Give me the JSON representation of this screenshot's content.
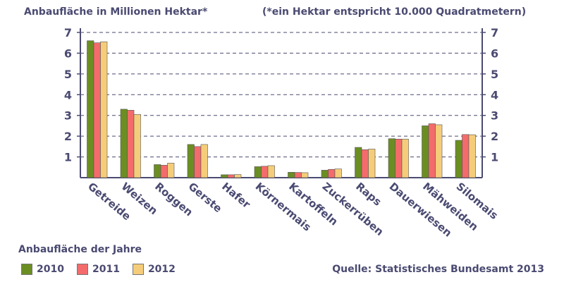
{
  "header": {
    "ylabel": "Anbaufläche in Millionen Hektar*",
    "note": "(*ein Hektar entspricht 10.000 Quadratmetern)"
  },
  "legend": {
    "title": "Anbaufläche der Jahre",
    "placement": "bottom-left"
  },
  "source": "Quelle: Statistisches Bundesamt 2013",
  "colors": {
    "2010": "#6b8e23",
    "2011": "#f46b6b",
    "2012": "#f5cd7a",
    "axis": "#4a4a72",
    "grid": "#4a4a72"
  },
  "chart_data": {
    "type": "bar",
    "title": "",
    "ylabel": "Anbaufläche in Millionen Hektar*",
    "xlabel": "",
    "ylim": [
      0,
      7
    ],
    "yticks": [
      1,
      2,
      3,
      4,
      5,
      6,
      7
    ],
    "grid": true,
    "categories": [
      "Getreide",
      "Weizen",
      "Roggen",
      "Gerste",
      "Hafer",
      "Körnermais",
      "Kartoffeln",
      "Zuckerrüben",
      "Raps",
      "Dauerwiesen",
      "Mähweiden",
      "Silomais"
    ],
    "series": [
      {
        "name": "2010",
        "values": [
          6.6,
          3.3,
          0.63,
          1.6,
          0.14,
          0.53,
          0.26,
          0.36,
          1.46,
          1.88,
          2.5,
          1.8
        ]
      },
      {
        "name": "2011",
        "values": [
          6.5,
          3.25,
          0.6,
          1.5,
          0.14,
          0.55,
          0.25,
          0.4,
          1.35,
          1.86,
          2.6,
          2.08
        ]
      },
      {
        "name": "2012",
        "values": [
          6.55,
          3.05,
          0.7,
          1.6,
          0.15,
          0.58,
          0.24,
          0.42,
          1.38,
          1.86,
          2.55,
          2.07
        ]
      }
    ]
  }
}
